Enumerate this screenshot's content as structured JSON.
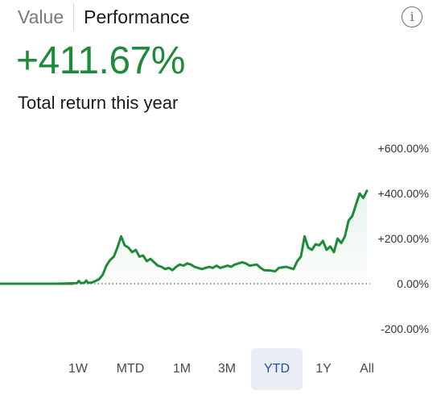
{
  "tabs": {
    "value_label": "Value",
    "performance_label": "Performance",
    "active": "Performance"
  },
  "info_icon": {
    "glyph": "i",
    "icon": "info-icon"
  },
  "summary": {
    "value": "+411.67%",
    "caption": "Total return this year"
  },
  "colors": {
    "positive": "#1e8a3a",
    "negative": "#c0392b",
    "selected_range_bg": "#e9eef4",
    "selected_range_text": "#1f4fa0"
  },
  "chart_data": {
    "type": "area",
    "y_ticks": [
      {
        "value": 600,
        "label": "+600.00%"
      },
      {
        "value": 400,
        "label": "+400.00%"
      },
      {
        "value": 200,
        "label": "+200.00%"
      },
      {
        "value": 0,
        "label": "0.00%"
      },
      {
        "value": -200,
        "label": "-200.00%"
      }
    ],
    "ylim": [
      -200,
      600
    ],
    "x_range": [
      0,
      100
    ],
    "baseline": 0,
    "baseline_style": "dotted",
    "series": [
      {
        "values": [
          [
            0,
            0
          ],
          [
            5,
            0
          ],
          [
            10,
            0
          ],
          [
            15,
            0
          ],
          [
            18,
            1
          ],
          [
            20,
            2
          ],
          [
            21,
            3
          ],
          [
            21.5,
            12
          ],
          [
            22,
            3
          ],
          [
            23,
            4
          ],
          [
            23.5,
            14
          ],
          [
            24,
            4
          ],
          [
            25,
            5
          ],
          [
            26,
            12
          ],
          [
            27,
            20
          ],
          [
            28,
            40
          ],
          [
            29,
            80
          ],
          [
            30,
            105
          ],
          [
            31,
            120
          ],
          [
            32,
            160
          ],
          [
            33,
            210
          ],
          [
            34,
            170
          ],
          [
            35,
            160
          ],
          [
            36,
            140
          ],
          [
            37,
            150
          ],
          [
            38,
            120
          ],
          [
            39,
            125
          ],
          [
            40,
            100
          ],
          [
            41,
            110
          ],
          [
            42,
            95
          ],
          [
            43,
            80
          ],
          [
            44,
            75
          ],
          [
            45,
            65
          ],
          [
            46,
            70
          ],
          [
            47,
            60
          ],
          [
            48,
            75
          ],
          [
            49,
            85
          ],
          [
            50,
            80
          ],
          [
            51,
            90
          ],
          [
            52,
            85
          ],
          [
            53,
            75
          ],
          [
            54,
            70
          ],
          [
            55,
            65
          ],
          [
            56,
            70
          ],
          [
            57,
            75
          ],
          [
            58,
            70
          ],
          [
            59,
            80
          ],
          [
            60,
            70
          ],
          [
            61,
            75
          ],
          [
            62,
            80
          ],
          [
            63,
            75
          ],
          [
            64,
            85
          ],
          [
            65,
            90
          ],
          [
            66,
            95
          ],
          [
            67,
            90
          ],
          [
            68,
            80
          ],
          [
            70,
            85
          ],
          [
            71,
            70
          ],
          [
            72,
            60
          ],
          [
            74,
            58
          ],
          [
            75,
            55
          ],
          [
            76,
            70
          ],
          [
            78,
            75
          ],
          [
            79,
            70
          ],
          [
            80,
            65
          ],
          [
            81,
            100
          ],
          [
            82,
            120
          ],
          [
            83,
            210
          ],
          [
            84,
            160
          ],
          [
            85,
            150
          ],
          [
            86,
            175
          ],
          [
            87,
            170
          ],
          [
            88,
            190
          ],
          [
            89,
            150
          ],
          [
            90,
            165
          ],
          [
            91,
            140
          ],
          [
            92,
            200
          ],
          [
            93,
            180
          ],
          [
            94,
            210
          ],
          [
            95,
            280
          ],
          [
            96,
            300
          ],
          [
            97,
            350
          ],
          [
            98,
            400
          ],
          [
            99,
            380
          ],
          [
            100,
            411.67
          ]
        ]
      }
    ]
  },
  "ranges": [
    {
      "label": "1W",
      "selected": false
    },
    {
      "label": "MTD",
      "selected": false
    },
    {
      "label": "1M",
      "selected": false
    },
    {
      "label": "3M",
      "selected": false
    },
    {
      "label": "YTD",
      "selected": true
    },
    {
      "label": "1Y",
      "selected": false
    },
    {
      "label": "All",
      "selected": false
    }
  ]
}
